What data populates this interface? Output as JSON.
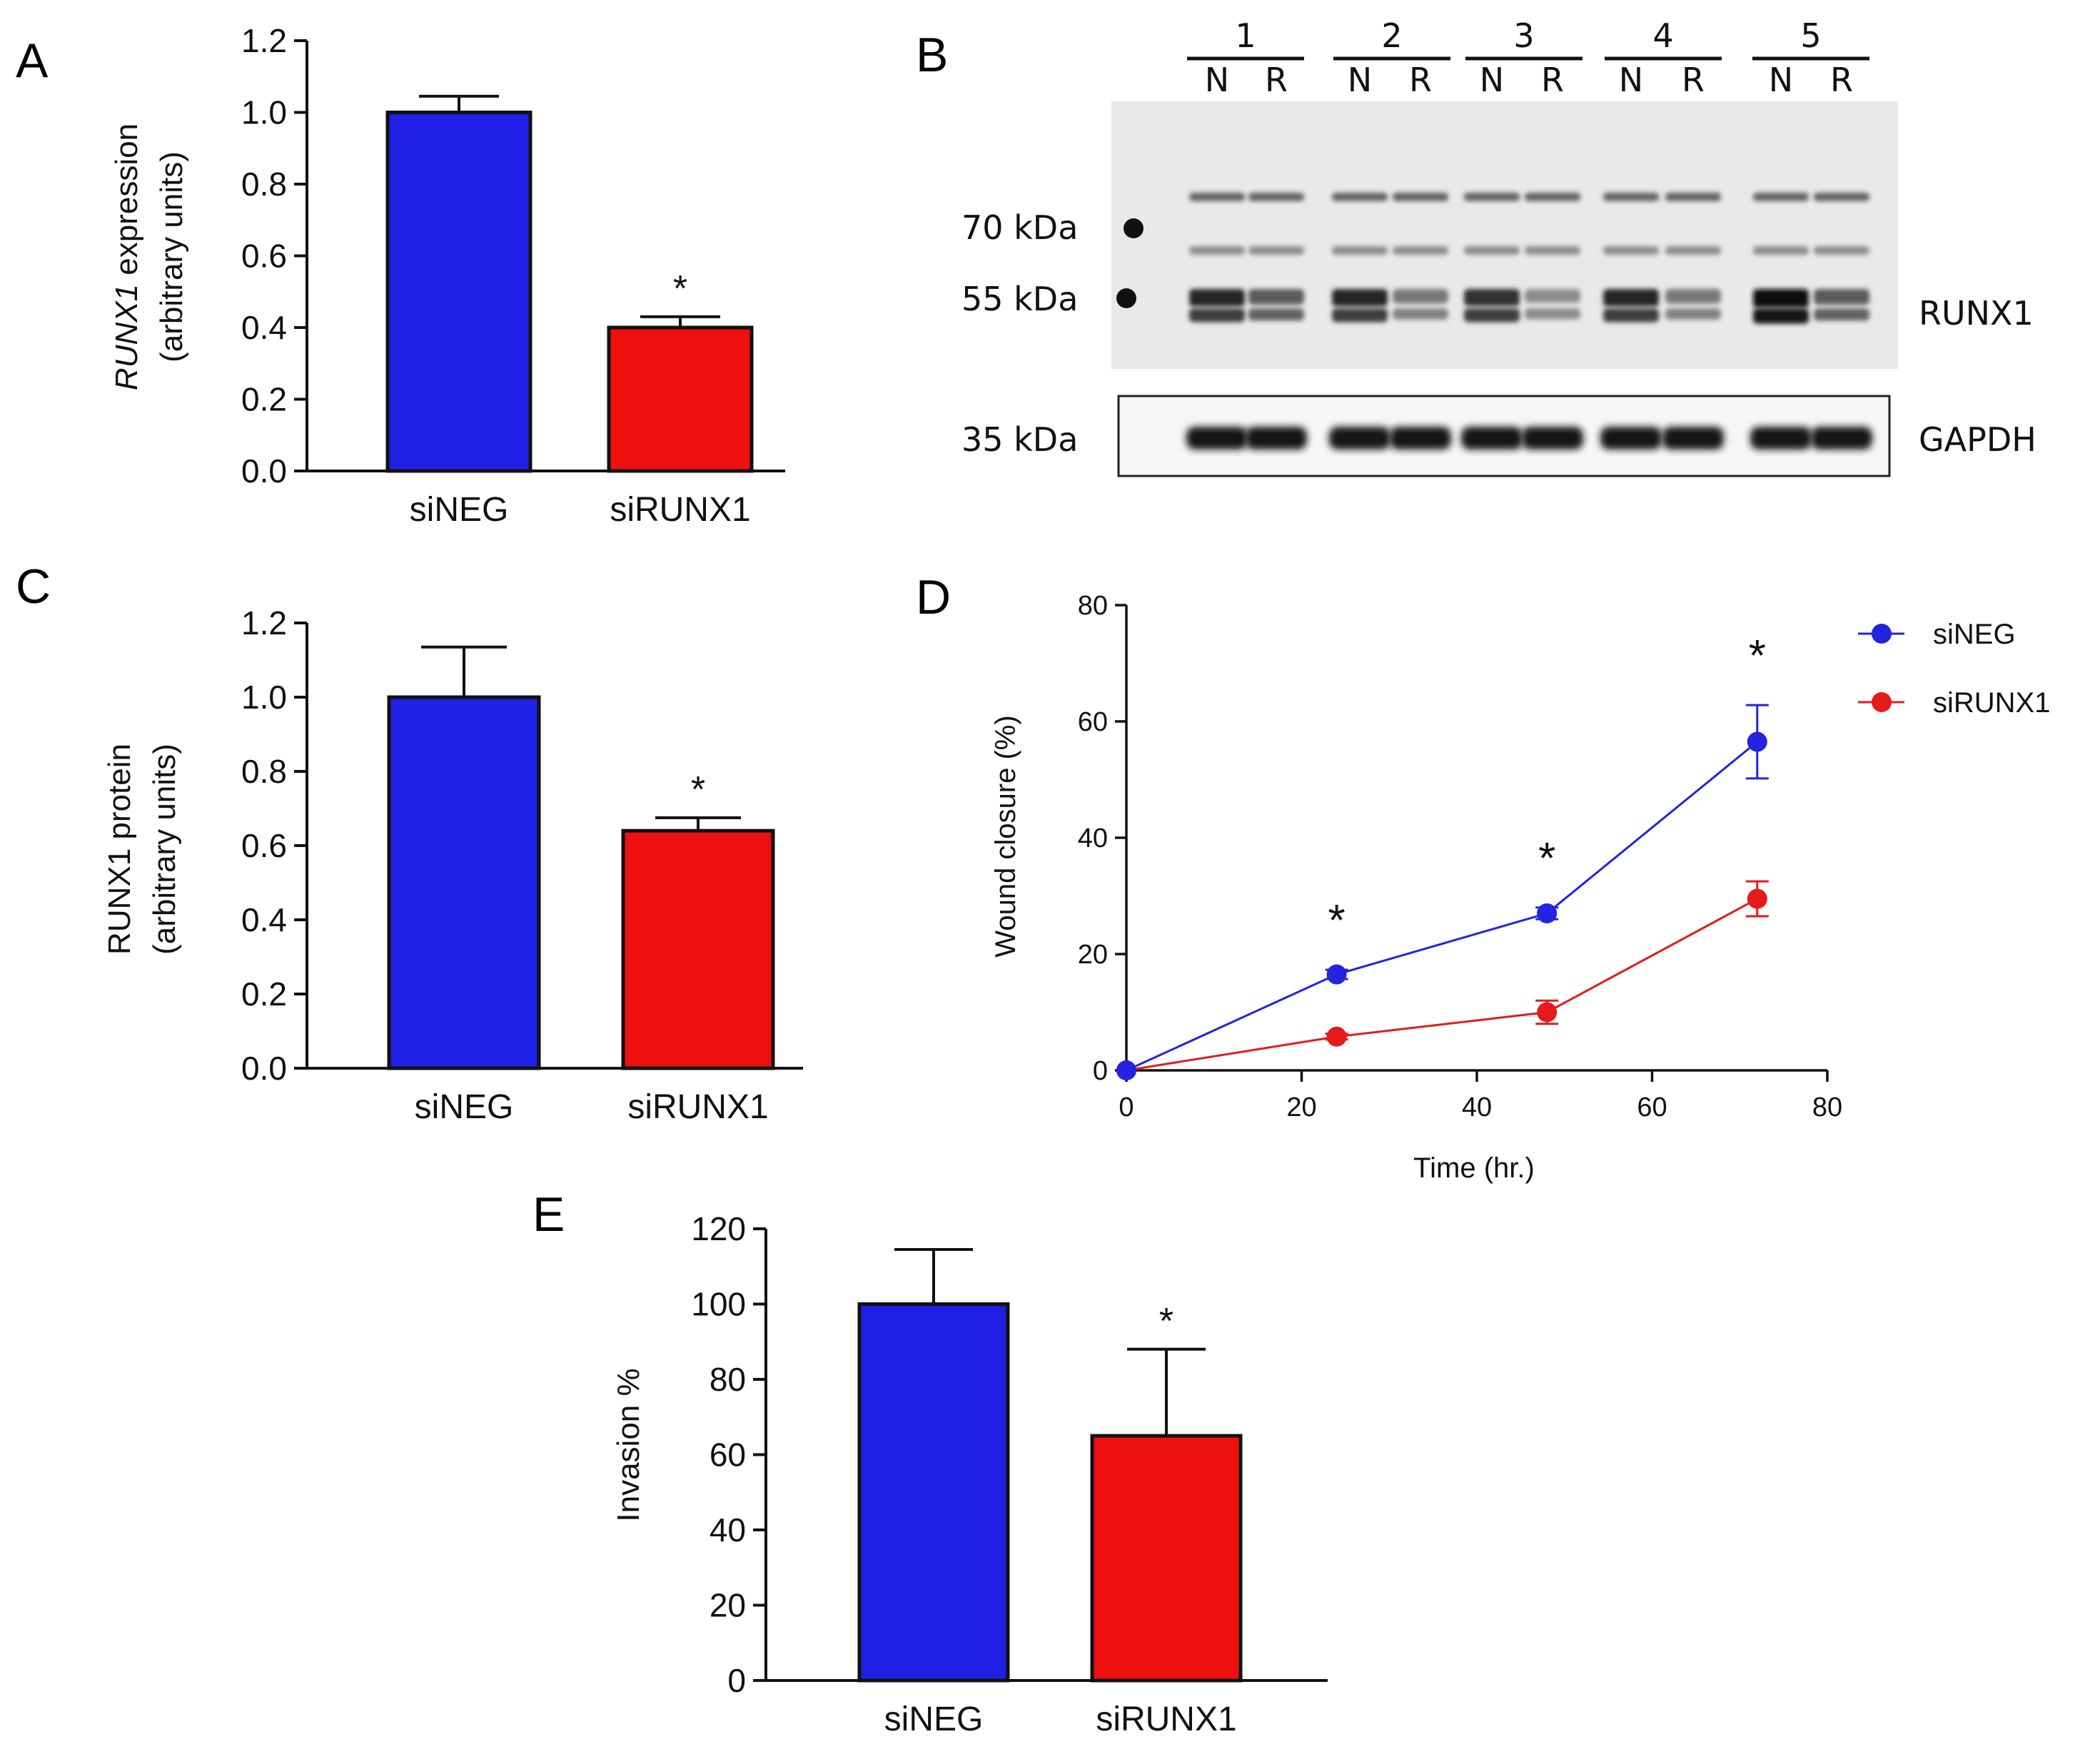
{
  "chart_data": [
    {
      "panel": "A",
      "type": "bar",
      "categories": [
        "siNEG",
        "siRUNX1"
      ],
      "values": [
        1.0,
        0.4
      ],
      "errors": [
        0.045,
        0.03
      ],
      "colors": [
        "#1f1fe6",
        "#ee0f0f"
      ],
      "significance": [
        "",
        "*"
      ],
      "ylabel_italic": "RUNX1",
      "ylabel_rest": " expression",
      "ylabel_line2": "(arbitrary units)",
      "ylim": [
        0,
        1.2
      ],
      "yticks": [
        "0.0",
        "0.2",
        "0.4",
        "0.6",
        "0.8",
        "1.0",
        "1.2"
      ]
    },
    {
      "panel": "C",
      "type": "bar",
      "categories": [
        "siNEG",
        "siRUNX1"
      ],
      "values": [
        1.0,
        0.64
      ],
      "errors": [
        0.135,
        0.035
      ],
      "colors": [
        "#1f1fe6",
        "#ee0f0f"
      ],
      "significance": [
        "",
        "*"
      ],
      "ylabel_line1": "RUNX1 protein",
      "ylabel_line2": "(arbitrary units)",
      "ylim": [
        0,
        1.2
      ],
      "yticks": [
        "0.0",
        "0.2",
        "0.4",
        "0.6",
        "0.8",
        "1.0",
        "1.2"
      ]
    },
    {
      "panel": "D",
      "type": "line",
      "xlabel": "Time (hr.)",
      "ylabel": "Wound closure (%)",
      "xlim": [
        0,
        80
      ],
      "ylim": [
        0,
        80
      ],
      "xticks": [
        "0",
        "20",
        "40",
        "60",
        "80"
      ],
      "yticks": [
        "0",
        "20",
        "40",
        "60",
        "80"
      ],
      "series": [
        {
          "name": "siNEG",
          "color": "#2323e0",
          "x": [
            0,
            24,
            48,
            72
          ],
          "y": [
            0,
            16.5,
            27,
            56.5
          ],
          "errors": [
            0,
            0.8,
            1.0,
            6.3
          ]
        },
        {
          "name": "siRUNX1",
          "color": "#e61a1a",
          "x": [
            0,
            24,
            48,
            72
          ],
          "y": [
            0,
            5.8,
            10,
            29.5
          ],
          "errors": [
            0,
            0.5,
            2.0,
            3.0
          ]
        }
      ],
      "significance": [
        {
          "x": 24,
          "label": "*"
        },
        {
          "x": 48,
          "label": "*"
        },
        {
          "x": 72,
          "label": "*"
        }
      ],
      "legend_position": "top-right"
    },
    {
      "panel": "E",
      "type": "bar",
      "categories": [
        "siNEG",
        "siRUNX1"
      ],
      "values": [
        100,
        65
      ],
      "errors": [
        14.5,
        23
      ],
      "colors": [
        "#1f1fe6",
        "#ee0f0f"
      ],
      "significance": [
        "",
        "*"
      ],
      "ylabel": "Invasion %",
      "ylim": [
        0,
        120
      ],
      "yticks": [
        "0",
        "20",
        "40",
        "60",
        "80",
        "100",
        "120"
      ]
    }
  ],
  "western_blot": {
    "panel": "B",
    "lane_groups": [
      "1",
      "2",
      "3",
      "4",
      "5"
    ],
    "lane_labels": [
      "N",
      "R"
    ],
    "markers": [
      "70 kDa",
      "55 kDa",
      "35 kDa"
    ],
    "bands": [
      "RUNX1",
      "GAPDH"
    ],
    "runx1_upper_intensity": [
      0.85,
      0.6,
      0.85,
      0.45,
      0.8,
      0.35,
      0.85,
      0.45,
      1.0,
      0.6
    ],
    "runx1_lower_intensity": [
      0.75,
      0.55,
      0.75,
      0.4,
      0.75,
      0.35,
      0.75,
      0.4,
      0.95,
      0.55
    ]
  },
  "panel_labels": [
    "A",
    "B",
    "C",
    "D",
    "E"
  ]
}
